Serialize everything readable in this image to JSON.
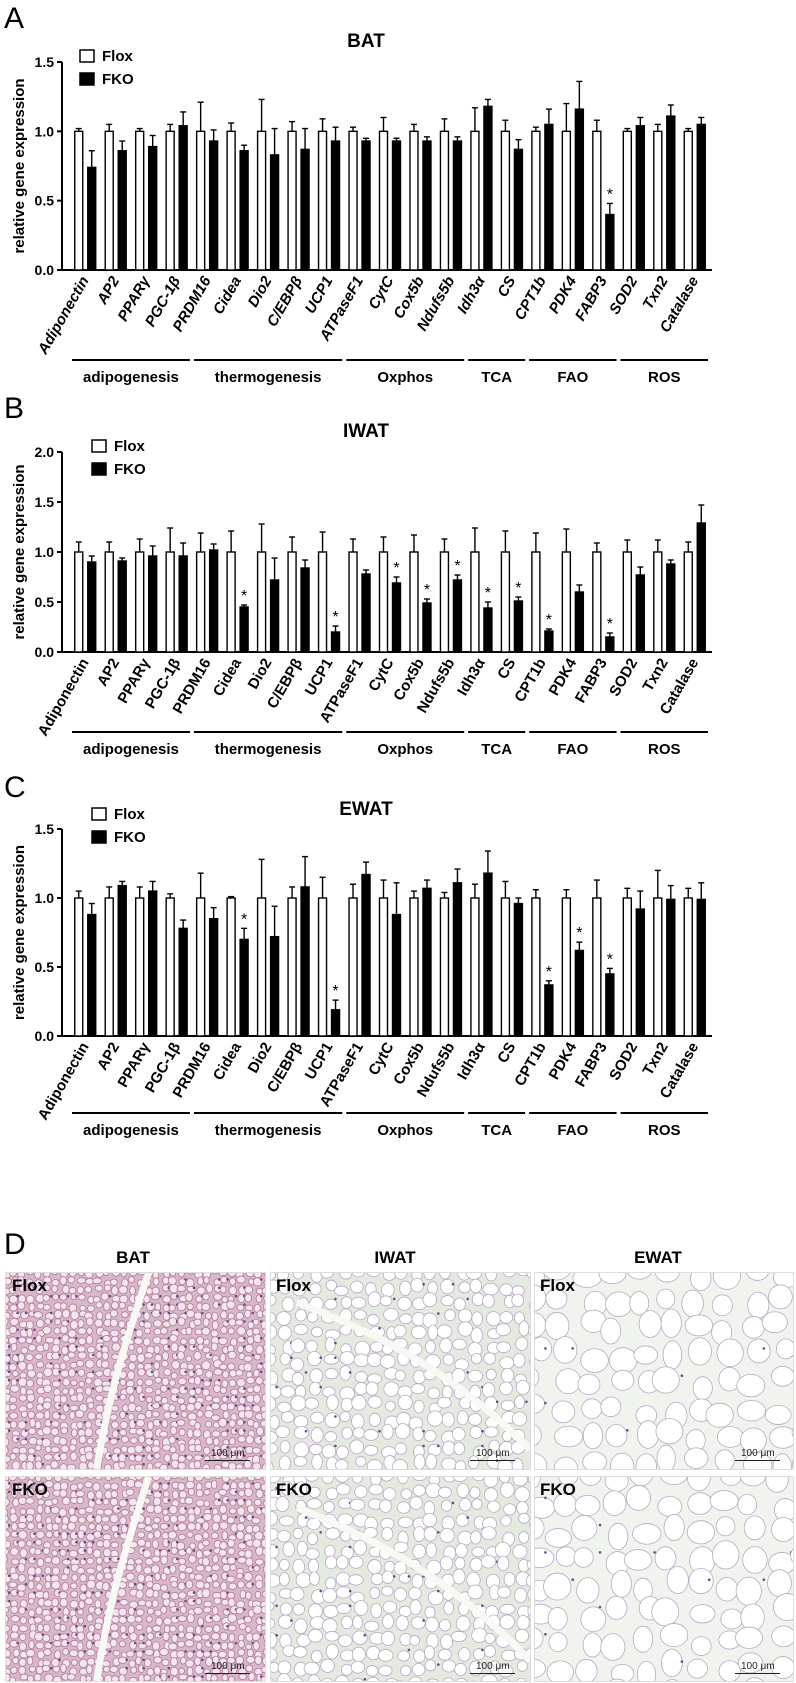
{
  "colors": {
    "flox": "#ffffff",
    "fko": "#000000",
    "stroke": "#000000"
  },
  "legend": {
    "flox": "Flox",
    "fko": "FKO"
  },
  "y_axis_label": "relative gene expression",
  "chart_data": [
    {
      "panel": "A",
      "type": "bar",
      "title": "BAT",
      "ylabel": "relative gene expression",
      "ylim": [
        0,
        1.5
      ],
      "yticks": [
        "0.0",
        "0.5",
        "1.0",
        "1.5"
      ],
      "italic_labels": true,
      "categories": [
        "Adiponectin",
        "AP2",
        "PPARγ",
        "PGC-1β",
        "PRDM16",
        "Cidea",
        "Dio2",
        "C/EBPβ",
        "UCP1",
        "ATPaseF1",
        "CytC",
        "Cox5b",
        "Ndufs5b",
        "Idh3α",
        "CS",
        "CPT1b",
        "PDK4",
        "FABP3",
        "SOD2",
        "Txn2",
        "Catalase"
      ],
      "series": [
        {
          "name": "Flox",
          "values": [
            1.0,
            1.0,
            1.0,
            1.0,
            1.0,
            1.0,
            1.0,
            1.0,
            1.0,
            1.0,
            1.0,
            1.0,
            1.0,
            1.0,
            1.0,
            1.0,
            1.0,
            1.0,
            1.0,
            1.0,
            1.0
          ],
          "errors": [
            0.02,
            0.05,
            0.02,
            0.05,
            0.21,
            0.06,
            0.23,
            0.07,
            0.09,
            0.03,
            0.1,
            0.05,
            0.09,
            0.17,
            0.08,
            0.03,
            0.2,
            0.08,
            0.02,
            0.05,
            0.02
          ]
        },
        {
          "name": "FKO",
          "values": [
            0.74,
            0.86,
            0.89,
            1.04,
            0.93,
            0.86,
            0.83,
            0.87,
            0.93,
            0.93,
            0.93,
            0.93,
            0.93,
            1.18,
            0.87,
            1.05,
            1.16,
            0.4,
            1.04,
            1.11,
            1.05
          ],
          "errors": [
            0.12,
            0.07,
            0.08,
            0.1,
            0.08,
            0.04,
            0.19,
            0.15,
            0.1,
            0.02,
            0.02,
            0.03,
            0.03,
            0.05,
            0.07,
            0.11,
            0.2,
            0.08,
            0.06,
            0.08,
            0.05
          ]
        }
      ],
      "significant": [
        "FABP3"
      ],
      "star_label": "*",
      "groups": [
        {
          "label": "adipogenesis",
          "start": 0,
          "end": 3
        },
        {
          "label": "thermogenesis",
          "start": 4,
          "end": 8
        },
        {
          "label": "Oxphos",
          "start": 9,
          "end": 12
        },
        {
          "label": "TCA",
          "start": 13,
          "end": 14
        },
        {
          "label": "FAO",
          "start": 15,
          "end": 17
        },
        {
          "label": "ROS",
          "start": 18,
          "end": 20
        }
      ]
    },
    {
      "panel": "B",
      "type": "bar",
      "title": "IWAT",
      "ylabel": "relative gene expression",
      "ylim": [
        0,
        2.0
      ],
      "yticks": [
        "0.0",
        "0.5",
        "1.0",
        "1.5",
        "2.0"
      ],
      "italic_labels": false,
      "categories": [
        "Adiponectin",
        "AP2",
        "PPARγ",
        "PGC-1β",
        "PRDM16",
        "Cidea",
        "Dio2",
        "C/EBPβ",
        "UCP1",
        "ATPaseF1",
        "CytC",
        "Cox5b",
        "Ndufs5b",
        "Idh3α",
        "CS",
        "CPT1b",
        "PDK4",
        "FABP3",
        "SOD2",
        "Txn2",
        "Catalase"
      ],
      "series": [
        {
          "name": "Flox",
          "values": [
            1.0,
            1.0,
            1.0,
            1.0,
            1.0,
            1.0,
            1.0,
            1.0,
            1.0,
            1.0,
            1.0,
            1.0,
            1.0,
            1.0,
            1.0,
            1.0,
            1.0,
            1.0,
            1.0,
            1.0,
            1.0
          ],
          "errors": [
            0.1,
            0.1,
            0.13,
            0.24,
            0.19,
            0.21,
            0.28,
            0.15,
            0.2,
            0.13,
            0.15,
            0.17,
            0.13,
            0.24,
            0.21,
            0.19,
            0.23,
            0.09,
            0.12,
            0.12,
            0.1
          ]
        },
        {
          "name": "FKO",
          "values": [
            0.9,
            0.91,
            0.96,
            0.96,
            1.02,
            0.45,
            0.72,
            0.84,
            0.2,
            0.78,
            0.69,
            0.49,
            0.72,
            0.44,
            0.51,
            0.21,
            0.6,
            0.15,
            0.77,
            0.88,
            1.29
          ],
          "errors": [
            0.06,
            0.03,
            0.1,
            0.13,
            0.06,
            0.02,
            0.22,
            0.08,
            0.06,
            0.04,
            0.06,
            0.04,
            0.05,
            0.06,
            0.04,
            0.02,
            0.07,
            0.04,
            0.08,
            0.04,
            0.18
          ]
        }
      ],
      "significant": [
        "Cidea",
        "UCP1",
        "CytC",
        "Cox5b",
        "Ndufs5b",
        "Idh3α",
        "CS",
        "CPT1b",
        "FABP3"
      ],
      "star_label": "*",
      "groups": [
        {
          "label": "adipogenesis",
          "start": 0,
          "end": 3
        },
        {
          "label": "thermogenesis",
          "start": 4,
          "end": 8
        },
        {
          "label": "Oxphos",
          "start": 9,
          "end": 12
        },
        {
          "label": "TCA",
          "start": 13,
          "end": 14
        },
        {
          "label": "FAO",
          "start": 15,
          "end": 17
        },
        {
          "label": "ROS",
          "start": 18,
          "end": 20
        }
      ]
    },
    {
      "panel": "C",
      "type": "bar",
      "title": "EWAT",
      "ylabel": "relative gene expression",
      "ylim": [
        0,
        1.5
      ],
      "yticks": [
        "0.0",
        "0.5",
        "1.0",
        "1.5"
      ],
      "italic_labels": false,
      "categories": [
        "Adiponectin",
        "AP2",
        "PPARγ",
        "PGC-1β",
        "PRDM16",
        "Cidea",
        "Dio2",
        "C/EBPβ",
        "UCP1",
        "ATPaseF1",
        "CytC",
        "Cox5b",
        "Ndufs5b",
        "Idh3α",
        "CS",
        "CPT1b",
        "PDK4",
        "FABP3",
        "SOD2",
        "Txn2",
        "Catalase"
      ],
      "series": [
        {
          "name": "Flox",
          "values": [
            1.0,
            1.0,
            1.0,
            1.0,
            1.0,
            1.0,
            1.0,
            1.0,
            1.0,
            1.0,
            1.0,
            1.0,
            1.0,
            1.0,
            1.0,
            1.0,
            1.0,
            1.0,
            1.0,
            1.0,
            1.0
          ],
          "errors": [
            0.05,
            0.08,
            0.08,
            0.03,
            0.18,
            0.01,
            0.28,
            0.08,
            0.15,
            0.1,
            0.13,
            0.05,
            0.04,
            0.1,
            0.12,
            0.06,
            0.06,
            0.13,
            0.07,
            0.2,
            0.07
          ]
        },
        {
          "name": "FKO",
          "values": [
            0.88,
            1.09,
            1.05,
            0.78,
            0.85,
            0.7,
            0.72,
            1.08,
            0.19,
            1.17,
            0.88,
            1.07,
            1.11,
            1.18,
            0.96,
            0.37,
            0.62,
            0.45,
            0.92,
            0.99,
            0.99
          ],
          "errors": [
            0.08,
            0.03,
            0.07,
            0.06,
            0.08,
            0.08,
            0.22,
            0.22,
            0.07,
            0.09,
            0.23,
            0.06,
            0.1,
            0.16,
            0.04,
            0.03,
            0.06,
            0.04,
            0.13,
            0.1,
            0.12
          ]
        }
      ],
      "significant": [
        "Cidea",
        "UCP1",
        "CPT1b",
        "PDK4",
        "FABP3"
      ],
      "star_label": "*",
      "groups": [
        {
          "label": "adipogenesis",
          "start": 0,
          "end": 3
        },
        {
          "label": "thermogenesis",
          "start": 4,
          "end": 8
        },
        {
          "label": "Oxphos",
          "start": 9,
          "end": 12
        },
        {
          "label": "TCA",
          "start": 13,
          "end": 14
        },
        {
          "label": "FAO",
          "start": 15,
          "end": 17
        },
        {
          "label": "ROS",
          "start": 18,
          "end": 20
        }
      ]
    }
  ],
  "histology": {
    "panel": "D",
    "columns": [
      "BAT",
      "IWAT",
      "EWAT"
    ],
    "rows": [
      "Flox",
      "FKO"
    ],
    "scale_bar": "100 μm"
  }
}
